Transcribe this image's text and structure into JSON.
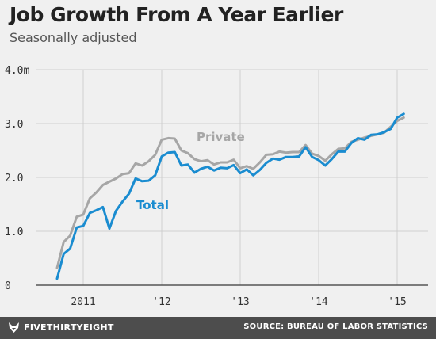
{
  "header": {
    "title": "Job Growth From A Year Earlier",
    "subtitle": "Seasonally adjusted"
  },
  "footer": {
    "brand": "FIVETHIRTYEIGHT",
    "brand_icon": "fox-logo-icon",
    "source": "SOURCE: BUREAU OF LABOR STATISTICS"
  },
  "colors": {
    "background": "#f0f0f0",
    "gridline": "#cfcfcf",
    "baseline": "#555555",
    "total": "#1a8cd0",
    "private": "#a6a6a6",
    "footer": "#4d4d4d"
  },
  "chart_data": {
    "type": "line",
    "title": "Job Growth From A Year Earlier",
    "subtitle": "Seasonally adjusted",
    "ylim": [
      0,
      4
    ],
    "y_ticks": [
      {
        "value": 0,
        "label": "0"
      },
      {
        "value": 1,
        "label": "1.0"
      },
      {
        "value": 2,
        "label": "2.0"
      },
      {
        "value": 3,
        "label": "3.0"
      },
      {
        "value": 4,
        "label": "4.0m"
      }
    ],
    "x_ticks": [
      {
        "value": "2011-01",
        "label": "2011"
      },
      {
        "value": "2012-01",
        "label": "'12"
      },
      {
        "value": "2013-01",
        "label": "'13"
      },
      {
        "value": "2014-01",
        "label": "'14"
      },
      {
        "value": "2015-01",
        "label": "'15"
      }
    ],
    "grid": true,
    "x": [
      "2010-09",
      "2010-10",
      "2010-11",
      "2010-12",
      "2011-01",
      "2011-02",
      "2011-03",
      "2011-04",
      "2011-05",
      "2011-06",
      "2011-07",
      "2011-08",
      "2011-09",
      "2011-10",
      "2011-11",
      "2011-12",
      "2012-01",
      "2012-02",
      "2012-03",
      "2012-04",
      "2012-05",
      "2012-06",
      "2012-07",
      "2012-08",
      "2012-09",
      "2012-10",
      "2012-11",
      "2012-12",
      "2013-01",
      "2013-02",
      "2013-03",
      "2013-04",
      "2013-05",
      "2013-06",
      "2013-07",
      "2013-08",
      "2013-09",
      "2013-10",
      "2013-11",
      "2013-12",
      "2014-01",
      "2014-02",
      "2014-03",
      "2014-04",
      "2014-05",
      "2014-06",
      "2014-07",
      "2014-08",
      "2014-09",
      "2014-10",
      "2014-11",
      "2014-12",
      "2015-01",
      "2015-02"
    ],
    "series": [
      {
        "name": "Private",
        "color": "#a6a6a6",
        "values": [
          0.32,
          0.8,
          0.92,
          1.27,
          1.31,
          1.61,
          1.72,
          1.86,
          1.92,
          1.98,
          2.06,
          2.08,
          2.26,
          2.22,
          2.3,
          2.42,
          2.7,
          2.73,
          2.72,
          2.5,
          2.45,
          2.34,
          2.3,
          2.32,
          2.24,
          2.28,
          2.28,
          2.33,
          2.17,
          2.21,
          2.16,
          2.28,
          2.42,
          2.43,
          2.48,
          2.46,
          2.47,
          2.47,
          2.6,
          2.44,
          2.4,
          2.31,
          2.43,
          2.53,
          2.54,
          2.66,
          2.7,
          2.74,
          2.77,
          2.8,
          2.83,
          2.94,
          3.05,
          3.11
        ]
      },
      {
        "name": "Total",
        "color": "#1a8cd0",
        "values": [
          0.12,
          0.58,
          0.68,
          1.07,
          1.1,
          1.34,
          1.39,
          1.45,
          1.05,
          1.38,
          1.55,
          1.7,
          1.98,
          1.93,
          1.94,
          2.04,
          2.39,
          2.46,
          2.47,
          2.22,
          2.24,
          2.09,
          2.16,
          2.2,
          2.13,
          2.18,
          2.17,
          2.23,
          2.08,
          2.15,
          2.04,
          2.14,
          2.27,
          2.35,
          2.33,
          2.38,
          2.38,
          2.39,
          2.56,
          2.38,
          2.32,
          2.22,
          2.34,
          2.48,
          2.48,
          2.64,
          2.73,
          2.7,
          2.79,
          2.8,
          2.84,
          2.9,
          3.11,
          3.18
        ]
      }
    ],
    "annotations": [
      {
        "text": "Private",
        "series": "Private"
      },
      {
        "text": "Total",
        "series": "Total"
      }
    ]
  }
}
